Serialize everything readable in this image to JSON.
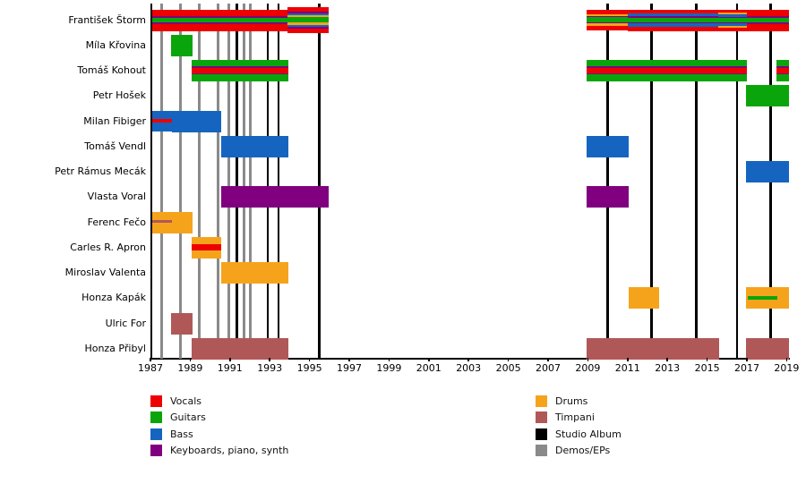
{
  "chart_data": {
    "type": "bar",
    "subtype": "band-membership-timeline",
    "title": "",
    "x_axis": {
      "min": 1987,
      "max": 2019.15,
      "tick_years": [
        1987,
        1989,
        1991,
        1993,
        1995,
        1997,
        1999,
        2001,
        2003,
        2005,
        2007,
        2009,
        2011,
        2013,
        2015,
        2017,
        2019
      ]
    },
    "colors": {
      "vocals": "#ee0000",
      "guitars": "#0aa50a",
      "bass": "#1565c0",
      "keys": "#800080",
      "drums": "#f6a31c",
      "timpani": "#b05858",
      "album": "#000000",
      "demo": "#8a8a8a"
    },
    "members": [
      {
        "name": "František Štorm",
        "segments": [
          {
            "start": 1987.1,
            "end": 1993.9,
            "stripes": [
              [
                "vocals",
                31
              ],
              [
                "keys",
                7
              ],
              [
                "guitars",
                22
              ],
              [
                "keys",
                7
              ],
              [
                "vocals",
                33
              ]
            ]
          },
          {
            "start": 1993.9,
            "end": 1995.95,
            "h": 29,
            "stripes": [
              [
                "vocals",
                15
              ],
              [
                "keys",
                6
              ],
              [
                "bass",
                7
              ],
              [
                "drums",
                7
              ],
              [
                "guitars",
                19
              ],
              [
                "drums",
                7
              ],
              [
                "bass",
                7
              ],
              [
                "keys",
                6
              ],
              [
                "vocals",
                16
              ]
            ]
          },
          {
            "start": 2008.95,
            "end": 2011.0,
            "stripes": [
              [
                "vocals",
                20
              ],
              [
                "drums",
                10
              ],
              [
                "keys",
                5
              ],
              [
                "guitars",
                22
              ],
              [
                "keys",
                5
              ],
              [
                "drums",
                10
              ],
              [
                "vocals",
                22
              ]
            ]
          },
          {
            "start": 2011.0,
            "end": 2015.55,
            "stripes": [
              [
                "vocals",
                18
              ],
              [
                "bass",
                13
              ],
              [
                "keys",
                5
              ],
              [
                "guitars",
                22
              ],
              [
                "keys",
                5
              ],
              [
                "bass",
                13
              ],
              [
                "vocals",
                20
              ]
            ]
          },
          {
            "start": 2015.55,
            "end": 2017.0,
            "stripes": [
              [
                "vocals",
                13
              ],
              [
                "drums",
                10
              ],
              [
                "bass",
                11
              ],
              [
                "keys",
                4
              ],
              [
                "guitars",
                22
              ],
              [
                "keys",
                4
              ],
              [
                "bass",
                11
              ],
              [
                "drums",
                10
              ],
              [
                "vocals",
                15
              ]
            ]
          },
          {
            "start": 2017.0,
            "end": 2019.1,
            "stripes": [
              [
                "vocals",
                31
              ],
              [
                "keys",
                7
              ],
              [
                "guitars",
                22
              ],
              [
                "keys",
                7
              ],
              [
                "vocals",
                33
              ]
            ]
          }
        ]
      },
      {
        "name": "Míla Křovina",
        "segments": [
          {
            "start": 1988.05,
            "end": 1989.1,
            "stripes": [
              [
                "guitars",
                1
              ]
            ]
          }
        ]
      },
      {
        "name": "Tomáš Kohout",
        "segments": [
          {
            "start": 1989.05,
            "end": 1993.95,
            "stripes": [
              [
                "guitars",
                30
              ],
              [
                "keys",
                6
              ],
              [
                "vocals",
                26
              ],
              [
                "keys",
                6
              ],
              [
                "guitars",
                32
              ]
            ]
          },
          {
            "start": 2008.95,
            "end": 2017.0,
            "stripes": [
              [
                "guitars",
                30
              ],
              [
                "keys",
                6
              ],
              [
                "vocals",
                26
              ],
              [
                "keys",
                6
              ],
              [
                "guitars",
                32
              ]
            ]
          },
          {
            "start": 2018.5,
            "end": 2019.1,
            "stripes": [
              [
                "guitars",
                30
              ],
              [
                "keys",
                6
              ],
              [
                "vocals",
                26
              ],
              [
                "keys",
                6
              ],
              [
                "guitars",
                32
              ]
            ]
          }
        ]
      },
      {
        "name": "Petr Hošek",
        "segments": [
          {
            "start": 2016.95,
            "end": 2019.1,
            "stripes": [
              [
                "guitars",
                1
              ]
            ]
          }
        ]
      },
      {
        "name": "Milan Fibiger",
        "segments": [
          {
            "start": 1987.1,
            "end": 1988.1,
            "stripes": [
              [
                "bass",
                40
              ],
              [
                "vocals",
                15
              ],
              [
                "bass",
                45
              ]
            ]
          },
          {
            "start": 1988.1,
            "end": 1990.55,
            "stripes": [
              [
                "bass",
                1
              ]
            ]
          }
        ]
      },
      {
        "name": "Tomáš Vendl",
        "segments": [
          {
            "start": 1990.55,
            "end": 1993.95,
            "stripes": [
              [
                "bass",
                1
              ]
            ]
          },
          {
            "start": 2008.95,
            "end": 2011.05,
            "stripes": [
              [
                "bass",
                1
              ]
            ]
          }
        ]
      },
      {
        "name": "Petr Rámus Mecák",
        "segments": [
          {
            "start": 2016.95,
            "end": 2019.1,
            "stripes": [
              [
                "bass",
                1
              ]
            ]
          }
        ]
      },
      {
        "name": "Vlasta Voral",
        "segments": [
          {
            "start": 1990.55,
            "end": 1995.95,
            "stripes": [
              [
                "keys",
                1
              ]
            ]
          },
          {
            "start": 2008.95,
            "end": 2011.05,
            "stripes": [
              [
                "keys",
                1
              ]
            ]
          }
        ]
      },
      {
        "name": "Ferenc Fečo",
        "segments": [
          {
            "start": 1987.1,
            "end": 1988.1,
            "stripes": [
              [
                "drums",
                38
              ],
              [
                "timpani",
                15
              ],
              [
                "drums",
                47
              ]
            ]
          },
          {
            "start": 1988.1,
            "end": 1989.1,
            "stripes": [
              [
                "drums",
                1
              ]
            ]
          }
        ]
      },
      {
        "name": "Carles R. Apron",
        "segments": [
          {
            "start": 1989.05,
            "end": 1990.55,
            "stripes": [
              [
                "drums",
                36
              ],
              [
                "vocals",
                26
              ],
              [
                "drums",
                38
              ]
            ]
          }
        ]
      },
      {
        "name": "Miroslav Valenta",
        "segments": [
          {
            "start": 1990.55,
            "end": 1993.95,
            "stripes": [
              [
                "drums",
                1
              ]
            ]
          }
        ]
      },
      {
        "name": "Honza Kapák",
        "segments": [
          {
            "start": 2011.05,
            "end": 2012.6,
            "stripes": [
              [
                "drums",
                1
              ]
            ]
          },
          {
            "start": 2016.95,
            "end": 2017.05,
            "stripes": [
              [
                "drums",
                1
              ]
            ]
          },
          {
            "start": 2017.05,
            "end": 2018.55,
            "stripes": [
              [
                "drums",
                40
              ],
              [
                "guitars",
                17
              ],
              [
                "drums",
                43
              ]
            ]
          },
          {
            "start": 2018.55,
            "end": 2019.1,
            "stripes": [
              [
                "drums",
                1
              ]
            ]
          }
        ]
      },
      {
        "name": "Ulric For",
        "segments": [
          {
            "start": 1988.05,
            "end": 1989.1,
            "stripes": [
              [
                "timpani",
                1
              ]
            ]
          }
        ]
      },
      {
        "name": "Honza Přibyl",
        "segments": [
          {
            "start": 1989.05,
            "end": 1993.95,
            "stripes": [
              [
                "timpani",
                1
              ]
            ]
          },
          {
            "start": 2008.95,
            "end": 2015.6,
            "stripes": [
              [
                "timpani",
                1
              ]
            ]
          },
          {
            "start": 2016.95,
            "end": 2019.1,
            "stripes": [
              [
                "timpani",
                1
              ]
            ]
          }
        ]
      }
    ],
    "releases": [
      {
        "year": 1987.55,
        "type": "demo"
      },
      {
        "year": 1988.5,
        "type": "demo"
      },
      {
        "year": 1989.45,
        "type": "demo"
      },
      {
        "year": 1990.4,
        "type": "demo"
      },
      {
        "year": 1990.95,
        "type": "demo"
      },
      {
        "year": 1991.35,
        "type": "album"
      },
      {
        "year": 1991.7,
        "type": "demo"
      },
      {
        "year": 1992.0,
        "type": "demo"
      },
      {
        "year": 1992.9,
        "type": "album"
      },
      {
        "year": 1993.45,
        "type": "album"
      },
      {
        "year": 1995.5,
        "type": "album"
      },
      {
        "year": 2010.0,
        "type": "album"
      },
      {
        "year": 2012.2,
        "type": "album"
      },
      {
        "year": 2014.45,
        "type": "album"
      },
      {
        "year": 2016.5,
        "type": "album"
      },
      {
        "year": 2018.2,
        "type": "album"
      }
    ],
    "legend": {
      "columns": [
        [
          {
            "label": "Vocals",
            "role": "vocals"
          },
          {
            "label": "Guitars",
            "role": "guitars"
          },
          {
            "label": "Bass",
            "role": "bass"
          },
          {
            "label": "Keyboards, piano, synth",
            "role": "keys"
          }
        ],
        [
          {
            "label": "Drums",
            "role": "drums"
          },
          {
            "label": "Timpani",
            "role": "timpani"
          },
          {
            "label": "Studio Album",
            "role": "album"
          },
          {
            "label": "Demos/EPs",
            "role": "demo"
          }
        ]
      ]
    }
  }
}
